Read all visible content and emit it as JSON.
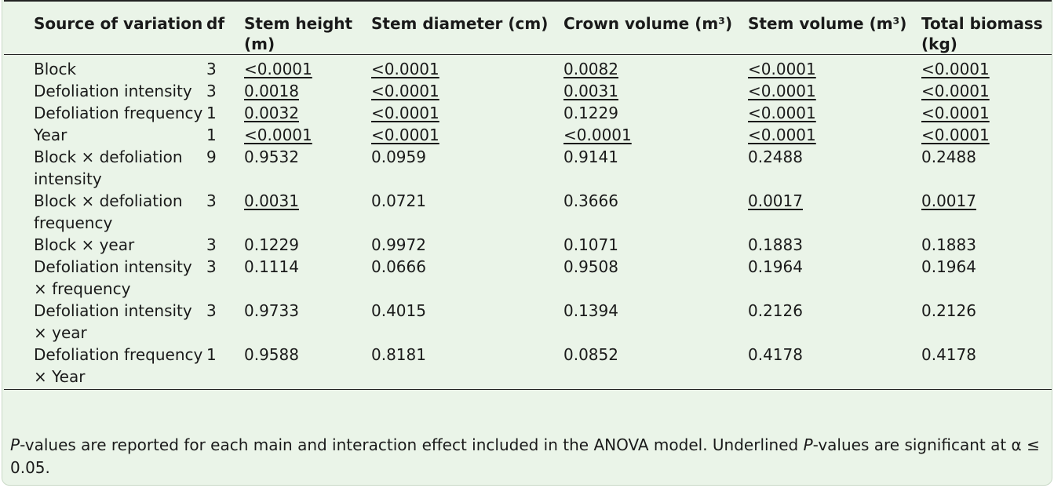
{
  "table": {
    "headers": [
      "Source of variation",
      "df",
      "Stem height (m)",
      "Stem diameter (cm)",
      "Crown volume (m³)",
      "Stem volume (m³)",
      "Total biomass (kg)"
    ],
    "rows": [
      {
        "cells": [
          "Block",
          "3",
          "<0.0001",
          "<0.0001",
          "0.0082",
          "<0.0001",
          "<0.0001"
        ],
        "significant": [
          false,
          false,
          true,
          true,
          true,
          true,
          true
        ]
      },
      {
        "cells": [
          "Defoliation intensity",
          "3",
          "0.0018",
          "<0.0001",
          "0.0031",
          "<0.0001",
          "<0.0001"
        ],
        "significant": [
          false,
          false,
          true,
          true,
          true,
          true,
          true
        ]
      },
      {
        "cells": [
          "Defoliation frequency",
          "1",
          "0.0032",
          "<0.0001",
          "0.1229",
          "<0.0001",
          "<0.0001"
        ],
        "significant": [
          false,
          false,
          true,
          true,
          false,
          true,
          true
        ]
      },
      {
        "cells": [
          "Year",
          "1",
          "<0.0001",
          "<0.0001",
          "<0.0001",
          "<0.0001",
          "<0.0001"
        ],
        "significant": [
          false,
          false,
          true,
          true,
          true,
          true,
          true
        ]
      },
      {
        "cells": [
          "Block × defoliation intensity",
          "9",
          "0.9532",
          "0.0959",
          "0.9141",
          "0.2488",
          "0.2488"
        ],
        "significant": [
          false,
          false,
          false,
          false,
          false,
          false,
          false
        ]
      },
      {
        "cells": [
          "Block × defoliation frequency",
          "3",
          "0.0031",
          "0.0721",
          "0.3666",
          "0.0017",
          "0.0017"
        ],
        "significant": [
          false,
          false,
          true,
          false,
          false,
          true,
          true
        ]
      },
      {
        "cells": [
          "Block × year",
          "3",
          "0.1229",
          "0.9972",
          "0.1071",
          "0.1883",
          "0.1883"
        ],
        "significant": [
          false,
          false,
          false,
          false,
          false,
          false,
          false
        ]
      },
      {
        "cells": [
          "Defoliation intensity × frequency",
          "3",
          "0.1114",
          "0.0666",
          "0.9508",
          "0.1964",
          "0.1964"
        ],
        "significant": [
          false,
          false,
          false,
          false,
          false,
          false,
          false
        ]
      },
      {
        "cells": [
          "Defoliation intensity × year",
          "3",
          "0.9733",
          "0.4015",
          "0.1394",
          "0.2126",
          "0.2126"
        ],
        "significant": [
          false,
          false,
          false,
          false,
          false,
          false,
          false
        ]
      },
      {
        "cells": [
          "Defoliation frequency × Year",
          "1",
          "0.9588",
          "0.8181",
          "0.0852",
          "0.4178",
          "0.4178"
        ],
        "significant": [
          false,
          false,
          false,
          false,
          false,
          false,
          false
        ]
      }
    ]
  },
  "footnote": {
    "p1": "P",
    "t1": "-values are reported for each main and interaction effect included in the ANOVA model.  Underlined ",
    "p2": "P",
    "t2": "-values are significant at α ≤ 0.05."
  }
}
